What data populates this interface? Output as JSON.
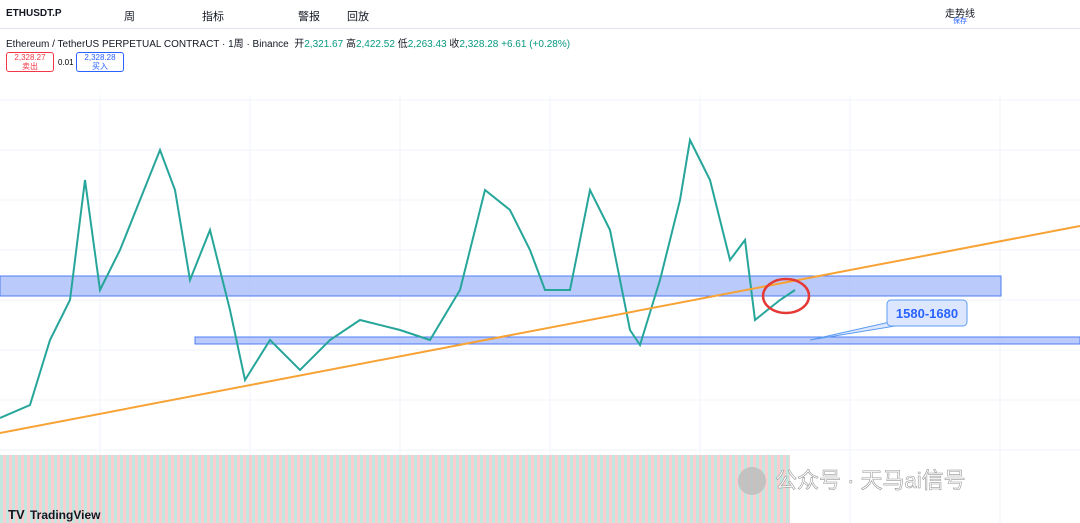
{
  "toolbar": {
    "symbol": "ETHUSDT.P",
    "interval": "周",
    "indicators": "指标",
    "alert": "警报",
    "replay": "回放",
    "layout_name": "走势线",
    "save": "保存"
  },
  "legend": {
    "title": "Ethereum / TetherUS PERPETUAL CONTRACT · 1周 · Binance",
    "open_label": "开",
    "open": "2,321.67",
    "high_label": "高",
    "high": "2,422.52",
    "low_label": "低",
    "low": "2,263.43",
    "close_label": "收",
    "close": "2,328.28",
    "change": "+6.61 (+0.28%)"
  },
  "order": {
    "sell_price": "2,328.27",
    "sell_label": "卖出",
    "spread": "0.01",
    "buy_price": "2,328.28",
    "buy_label": "买入"
  },
  "annotation": "1580-1680",
  "watermark": "公众号 · 天马ai信号",
  "brand": "TradingView"
}
